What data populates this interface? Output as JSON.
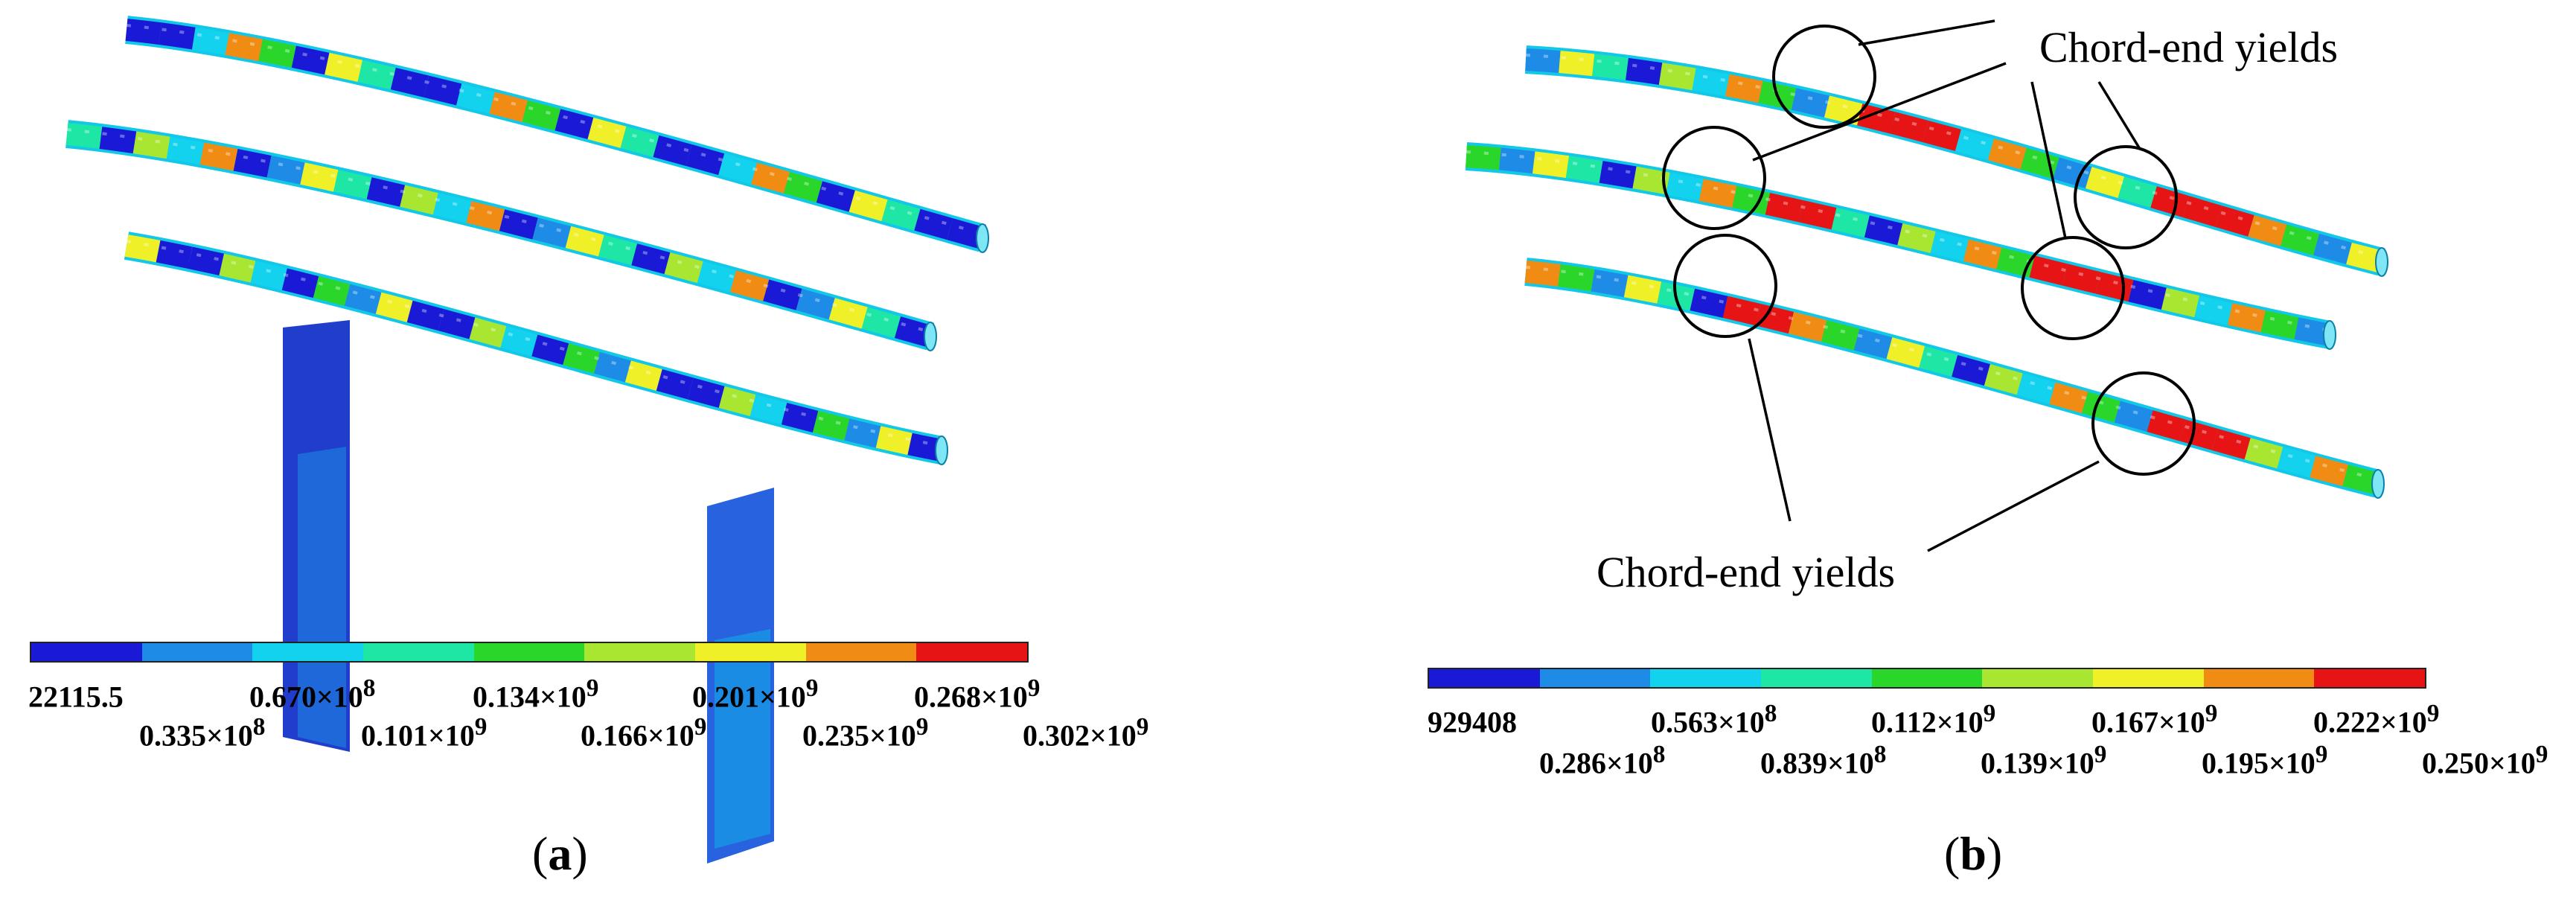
{
  "annotations": {
    "top": "Chord-end yields",
    "bottom": "Chord-end yields"
  },
  "captions": {
    "a": {
      "open": "(",
      "letter": "a",
      "close": ")"
    },
    "b": {
      "open": "(",
      "letter": "b",
      "close": ")"
    }
  },
  "legend_colors": [
    "#1a1ad6",
    "#1e8ce6",
    "#12d2ee",
    "#1ee6a5",
    "#2ad62a",
    "#a8e632",
    "#f0f028",
    "#f08c14",
    "#e61414"
  ],
  "legend_a": {
    "upper": [
      {
        "base": "22115.5",
        "exp": ""
      },
      {
        "base": "0.670×10",
        "exp": "8"
      },
      {
        "base": "0.134×10",
        "exp": "9"
      },
      {
        "base": "0.201×10",
        "exp": "9"
      },
      {
        "base": "0.268×10",
        "exp": "9"
      }
    ],
    "lower": [
      {
        "base": "0.335×10",
        "exp": "8"
      },
      {
        "base": "0.101×10",
        "exp": "9"
      },
      {
        "base": "0.166×10",
        "exp": "9"
      },
      {
        "base": "0.235×10",
        "exp": "9"
      },
      {
        "base": "0.302×10",
        "exp": "9"
      }
    ]
  },
  "legend_b": {
    "upper": [
      {
        "base": "929408",
        "exp": ""
      },
      {
        "base": "0.563×10",
        "exp": "8"
      },
      {
        "base": "0.112×10",
        "exp": "9"
      },
      {
        "base": "0.167×10",
        "exp": "9"
      },
      {
        "base": "0.222×10",
        "exp": "9"
      }
    ],
    "lower": [
      {
        "base": "0.286×10",
        "exp": "8"
      },
      {
        "base": "0.839×10",
        "exp": "8"
      },
      {
        "base": "0.139×10",
        "exp": "9"
      },
      {
        "base": "0.195×10",
        "exp": "9"
      },
      {
        "base": "0.250×10",
        "exp": "9"
      }
    ]
  }
}
